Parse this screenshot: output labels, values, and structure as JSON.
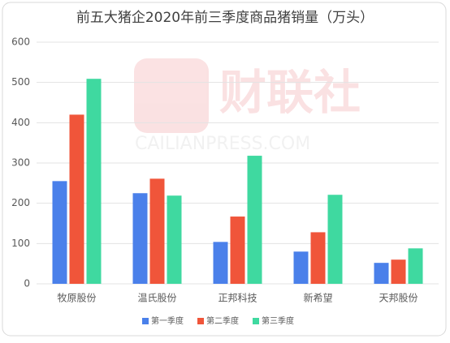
{
  "chart_data": {
    "type": "bar",
    "title": "前五大猪企2020年前三季度商品猪销量（万头）",
    "watermark": {
      "brand": "财联社",
      "site": "CAILIANPRESS.COM"
    },
    "categories": [
      "牧原股份",
      "温氏股份",
      "正邦科技",
      "新希望",
      "天邦股份"
    ],
    "series": [
      {
        "name": "第一季度",
        "color": "#4a80ea",
        "values": [
          255,
          225,
          104,
          80,
          52
        ]
      },
      {
        "name": "第二季度",
        "color": "#f0553a",
        "values": [
          420,
          261,
          167,
          128,
          60
        ]
      },
      {
        "name": "第三季度",
        "color": "#3fd9a0",
        "values": [
          509,
          219,
          318,
          221,
          88
        ]
      }
    ],
    "ylim": [
      0,
      600
    ],
    "yticks": [
      0,
      100,
      200,
      300,
      400,
      500,
      600
    ],
    "grid": true,
    "legend": "bottom"
  }
}
